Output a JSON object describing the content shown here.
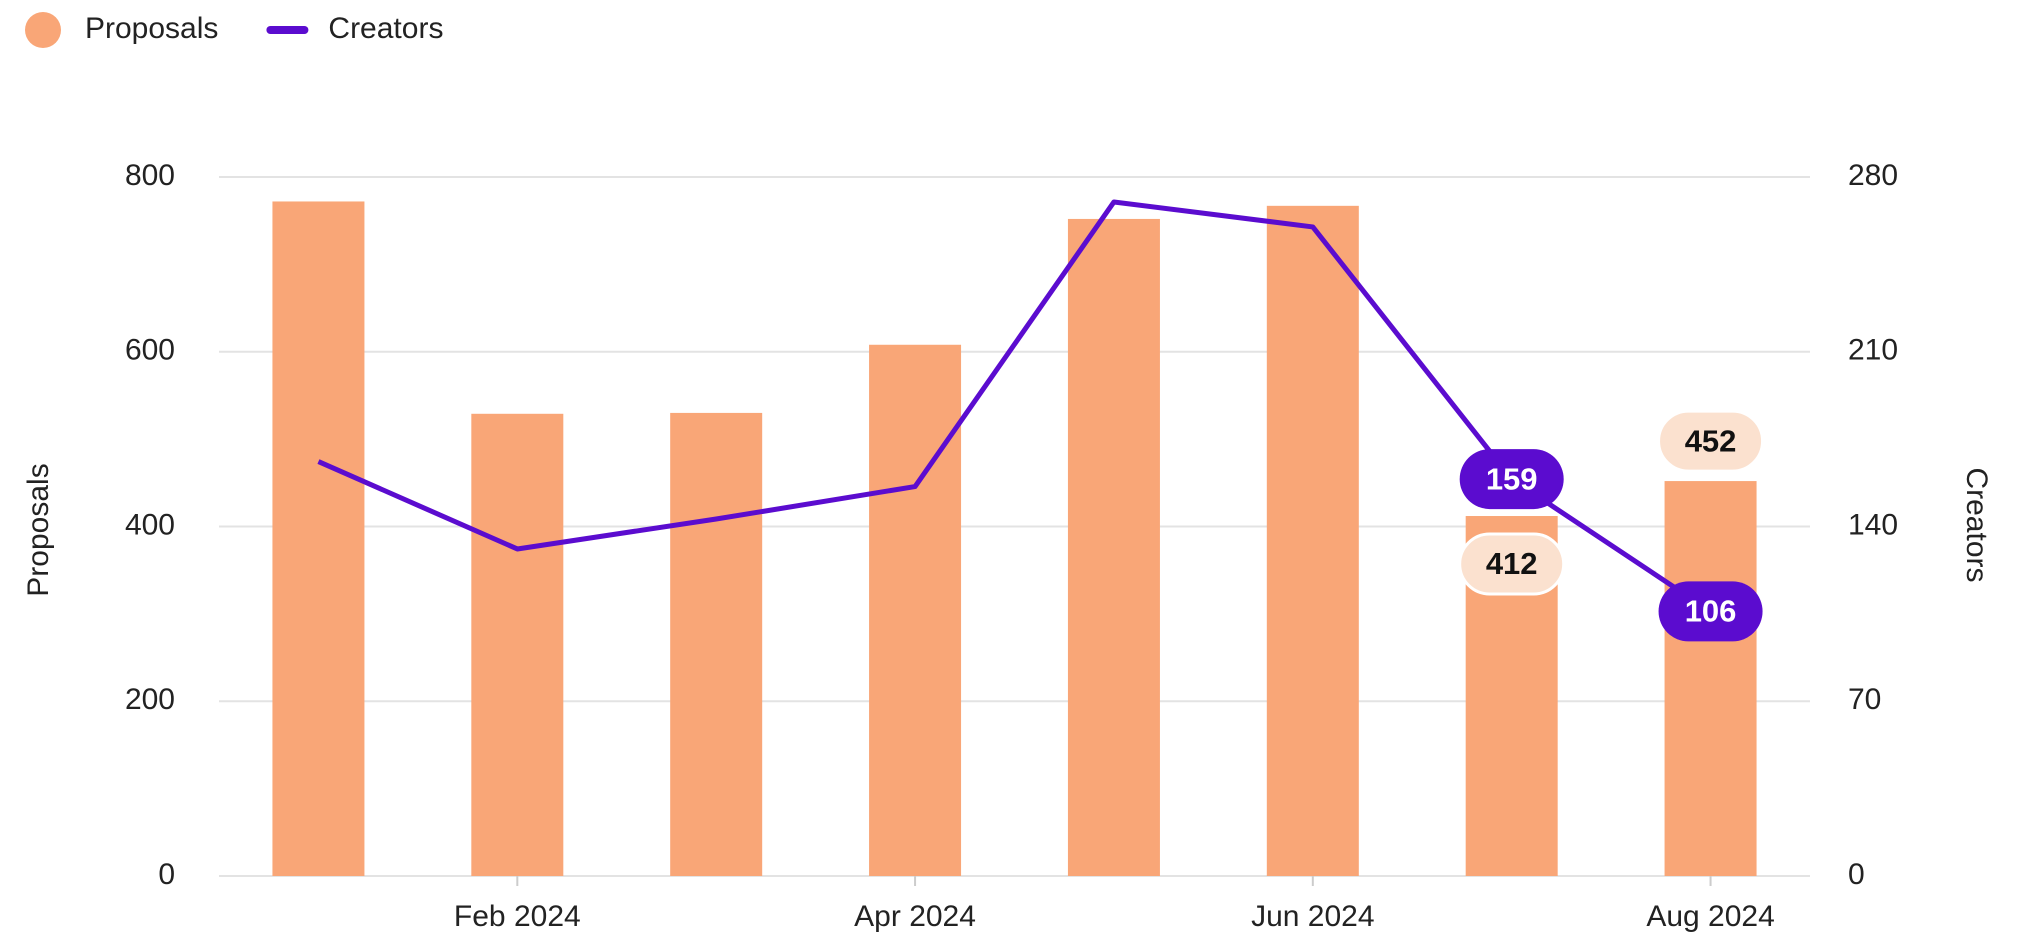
{
  "chart_data": {
    "type": "bar-line",
    "categories": [
      null,
      "Feb  2024",
      null,
      "Apr  2024",
      null,
      "Jun 2024",
      null,
      "Aug 2024"
    ],
    "series": [
      {
        "name": "Proposals",
        "color": "#f9a677",
        "type": "bar",
        "values": [
          772,
          529,
          530,
          608,
          752,
          767,
          412,
          452
        ]
      },
      {
        "name": "Creators",
        "color": "#5b0ccf",
        "type": "line",
        "axis": "y2",
        "values": [
          166,
          131,
          143,
          156,
          270,
          260,
          159,
          106
        ]
      }
    ],
    "y_label": "Proposals",
    "y2_label": "Creators",
    "ylim": [
      0,
      800
    ],
    "yticks": [
      0,
      200,
      400,
      600,
      800
    ],
    "y2lim": [
      0,
      280
    ],
    "y2ticks": [
      0,
      70,
      140,
      210,
      280
    ],
    "grid": true,
    "legend": "top-left"
  }
}
